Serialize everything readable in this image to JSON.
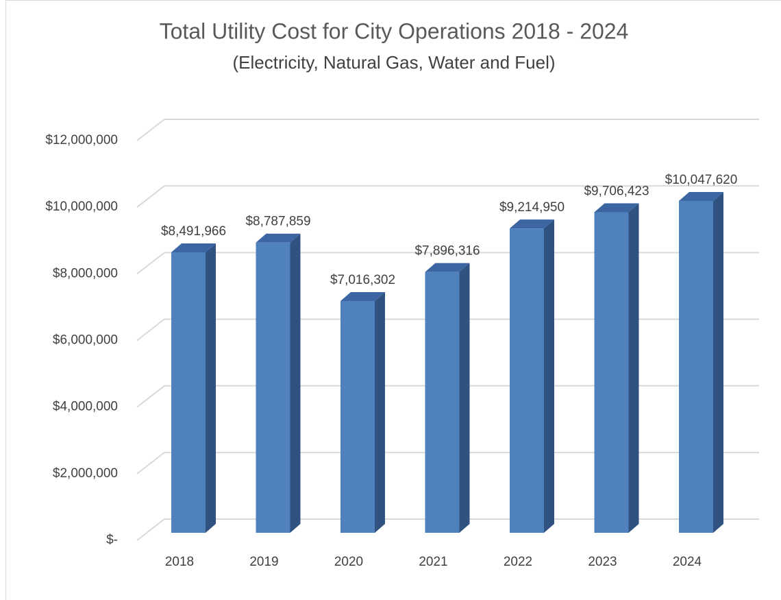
{
  "chart_data": {
    "type": "bar3d",
    "title": "Total Utility Cost for City Operations 2018 - 2024",
    "subtitle": "(Electricity, Natural Gas, Water and Fuel)",
    "categories": [
      "2018",
      "2019",
      "2020",
      "2021",
      "2022",
      "2023",
      "2024"
    ],
    "values": [
      8491966,
      8787859,
      7016302,
      7896316,
      9214950,
      9706423,
      10047620
    ],
    "value_labels": [
      "$8,491,966",
      "$8,787,859",
      "$7,016,302",
      "$7,896,316",
      "$9,214,950",
      "$9,706,423",
      "$10,047,620"
    ],
    "color": "#4f81bd",
    "ylim": [
      0,
      12000000
    ],
    "yticks": [
      {
        "value": 0,
        "label": "$-"
      },
      {
        "value": 2000000,
        "label": "$2,000,000"
      },
      {
        "value": 4000000,
        "label": "$4,000,000"
      },
      {
        "value": 6000000,
        "label": "$6,000,000"
      },
      {
        "value": 8000000,
        "label": "$8,000,000"
      },
      {
        "value": 10000000,
        "label": "$10,000,000"
      },
      {
        "value": 12000000,
        "label": "$12,000,000"
      }
    ],
    "grid": true
  }
}
